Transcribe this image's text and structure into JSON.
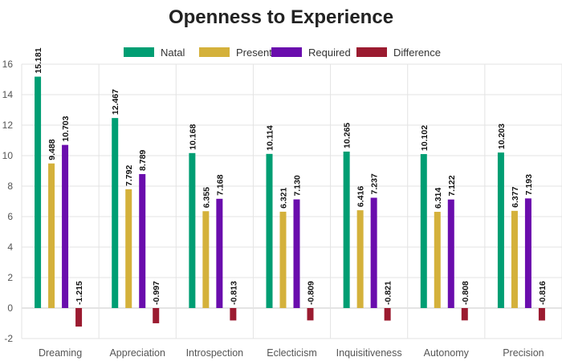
{
  "chart_data": {
    "type": "bar",
    "title": "Openness to Experience",
    "xlabel": "",
    "ylabel": "",
    "categories": [
      "Dreaming",
      "Appreciation",
      "Introspection",
      "Eclecticism",
      "Inquisitiveness",
      "Autonomy",
      "Precision"
    ],
    "series": [
      {
        "name": "Natal",
        "color": "#009e73",
        "values": [
          15.181,
          12.467,
          10.168,
          10.114,
          10.265,
          10.102,
          10.203
        ]
      },
      {
        "name": "Present",
        "color": "#d4b13b",
        "values": [
          9.488,
          7.792,
          6.355,
          6.321,
          6.416,
          6.314,
          6.377
        ]
      },
      {
        "name": "Required",
        "color": "#6a0dad",
        "values": [
          10.703,
          8.789,
          7.168,
          7.13,
          7.237,
          7.122,
          7.193
        ]
      },
      {
        "name": "Difference",
        "color": "#9b1b30",
        "values": [
          -1.215,
          -0.997,
          -0.813,
          -0.809,
          -0.821,
          -0.808,
          -0.816
        ]
      }
    ],
    "ylim": [
      -2,
      16
    ],
    "yticks": [
      -2,
      0,
      2,
      4,
      6,
      8,
      10,
      12,
      14,
      16
    ],
    "grid": true,
    "legend_position": "top"
  }
}
